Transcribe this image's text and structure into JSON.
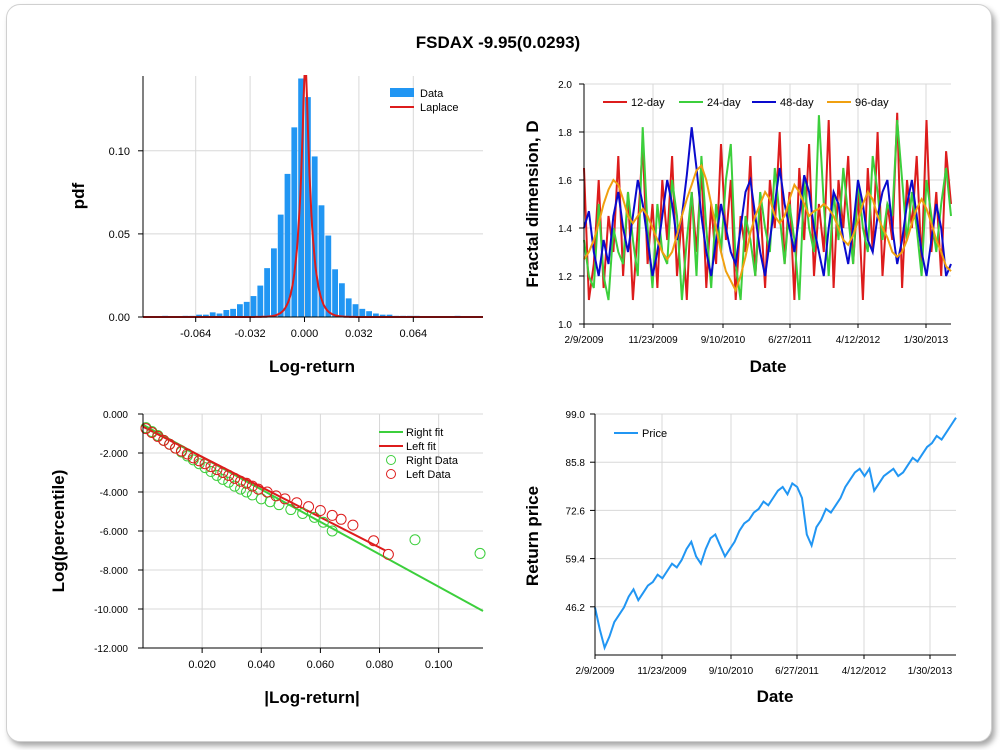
{
  "title": "FSDAX -9.95(0.0293)",
  "colors": {
    "blue": "#2196f3",
    "red": "#dd1c1c",
    "green": "#3ccf3c",
    "navy": "#0a0acd",
    "orange": "#f0a010"
  },
  "chart_data": [
    {
      "type": "bar",
      "name": "histogram",
      "xlabel": "Log-return",
      "ylabel": "pdf",
      "xlim": [
        -0.095,
        0.105
      ],
      "ylim": [
        0,
        0.145
      ],
      "x_ticks": [
        -0.064,
        -0.032,
        0.0,
        0.032,
        0.064
      ],
      "x_tick_labels": [
        "-0.064",
        "-0.032",
        "0.000",
        "0.032",
        "0.064"
      ],
      "y_ticks": [
        0.0,
        0.05,
        0.1
      ],
      "y_tick_labels": [
        "0.00",
        "0.05",
        "0.10"
      ],
      "legend": [
        "Data",
        "Laplace"
      ],
      "legend_position": "top-right",
      "bins": [
        -0.082,
        -0.078,
        -0.074,
        -0.07,
        -0.066,
        -0.062,
        -0.058,
        -0.054,
        -0.05,
        -0.046,
        -0.042,
        -0.038,
        -0.034,
        -0.03,
        -0.026,
        -0.022,
        -0.018,
        -0.014,
        -0.01,
        -0.006,
        -0.002,
        0.002,
        0.006,
        0.01,
        0.014,
        0.018,
        0.022,
        0.026,
        0.03,
        0.034,
        0.038,
        0.042,
        0.046,
        0.05,
        0.054,
        0.058,
        0.062,
        0.066,
        0.07,
        0.074,
        0.078,
        0.082,
        0.086,
        0.09
      ],
      "values": [
        0.0007,
        0,
        0,
        0.0007,
        0.0007,
        0.0014,
        0.0014,
        0.0028,
        0.0021,
        0.0042,
        0.0049,
        0.0077,
        0.0091,
        0.0126,
        0.0189,
        0.0294,
        0.0413,
        0.0616,
        0.0861,
        0.1141,
        0.1435,
        0.1323,
        0.0966,
        0.0672,
        0.049,
        0.0287,
        0.0203,
        0.0112,
        0.0077,
        0.0049,
        0.0035,
        0.0021,
        0.0014,
        0.0014,
        0.0007,
        0.0007,
        0.0007,
        0.0007,
        0,
        0,
        0,
        0,
        0,
        0.0007
      ],
      "laplace": {
        "mu": 0.0005,
        "b": 0.0034
      }
    },
    {
      "type": "line",
      "name": "fractal-dimension",
      "xlabel": "Date",
      "ylabel": "Fractal dimension, D",
      "ylim": [
        1.0,
        2.0
      ],
      "y_ticks": [
        1.0,
        1.2,
        1.4,
        1.6,
        1.8,
        2.0
      ],
      "y_tick_labels": [
        "1.0",
        "1.2",
        "1.4",
        "1.6",
        "1.8",
        "2.0"
      ],
      "x_range": [
        "2/9/2009",
        "5/20/2013"
      ],
      "x_tick_labels": [
        "2/9/2009",
        "11/23/2009",
        "9/10/2010",
        "6/27/2011",
        "4/12/2012",
        "1/30/2013"
      ],
      "legend_position": "top",
      "series": [
        {
          "name": "12-day",
          "color": "#dd1c1c",
          "values": [
            1.65,
            1.1,
            1.25,
            1.6,
            1.15,
            1.45,
            1.3,
            1.7,
            1.2,
            1.55,
            1.1,
            1.4,
            1.75,
            1.25,
            1.5,
            1.15,
            1.6,
            1.35,
            1.7,
            1.2,
            1.45,
            1.1,
            1.55,
            1.3,
            1.65,
            1.15,
            1.5,
            1.25,
            1.75,
            1.35,
            1.6,
            1.1,
            1.45,
            1.3,
            1.7,
            1.2,
            1.5,
            1.15,
            1.6,
            1.4,
            1.8,
            1.25,
            1.55,
            1.1,
            1.65,
            1.35,
            1.75,
            1.2,
            1.5,
            1.3,
            1.85,
            1.15,
            1.6,
            1.4,
            1.7,
            1.25,
            1.55,
            1.1,
            1.65,
            1.3,
            1.8,
            1.2,
            1.5,
            1.35,
            1.88,
            1.15,
            1.6,
            1.4,
            1.7,
            1.25,
            1.85,
            1.3,
            1.55,
            1.2,
            1.72,
            1.5
          ]
        },
        {
          "name": "24-day",
          "color": "#3ccf3c",
          "values": [
            1.35,
            1.2,
            1.15,
            1.5,
            1.2,
            1.1,
            1.4,
            1.3,
            1.25,
            1.55,
            1.35,
            1.2,
            1.82,
            1.4,
            1.15,
            1.5,
            1.3,
            1.25,
            1.6,
            1.45,
            1.1,
            1.35,
            1.55,
            1.2,
            1.7,
            1.4,
            1.15,
            1.5,
            1.3,
            1.6,
            1.75,
            1.25,
            1.1,
            1.45,
            1.35,
            1.2,
            1.55,
            1.4,
            1.3,
            1.65,
            1.45,
            1.25,
            1.5,
            1.35,
            1.1,
            1.6,
            1.4,
            1.3,
            1.87,
            1.5,
            1.2,
            1.55,
            1.35,
            1.65,
            1.45,
            1.25,
            1.6,
            1.4,
            1.3,
            1.7,
            1.55,
            1.35,
            1.5,
            1.45,
            1.85,
            1.6,
            1.35,
            1.55,
            1.4,
            1.2,
            1.6,
            1.45,
            1.3,
            1.5,
            1.65,
            1.45
          ]
        },
        {
          "name": "48-day",
          "color": "#0a0acd",
          "values": [
            1.4,
            1.47,
            1.3,
            1.2,
            1.35,
            1.25,
            1.45,
            1.55,
            1.4,
            1.3,
            1.45,
            1.6,
            1.5,
            1.35,
            1.2,
            1.3,
            1.45,
            1.6,
            1.5,
            1.35,
            1.45,
            1.62,
            1.82,
            1.65,
            1.45,
            1.3,
            1.2,
            1.35,
            1.5,
            1.4,
            1.3,
            1.25,
            1.4,
            1.55,
            1.6,
            1.45,
            1.3,
            1.2,
            1.35,
            1.5,
            1.65,
            1.5,
            1.4,
            1.3,
            1.45,
            1.62,
            1.55,
            1.4,
            1.3,
            1.2,
            1.4,
            1.55,
            1.5,
            1.35,
            1.25,
            1.4,
            1.6,
            1.5,
            1.35,
            1.3,
            1.45,
            1.55,
            1.6,
            1.4,
            1.25,
            1.35,
            1.5,
            1.6,
            1.45,
            1.3,
            1.2,
            1.35,
            1.5,
            1.4,
            1.2,
            1.25
          ]
        },
        {
          "name": "96-day",
          "color": "#f0a010",
          "values": [
            1.27,
            1.3,
            1.35,
            1.42,
            1.5,
            1.56,
            1.6,
            1.58,
            1.52,
            1.45,
            1.42,
            1.45,
            1.48,
            1.45,
            1.4,
            1.35,
            1.3,
            1.27,
            1.3,
            1.37,
            1.45,
            1.52,
            1.58,
            1.64,
            1.66,
            1.6,
            1.5,
            1.4,
            1.3,
            1.22,
            1.18,
            1.14,
            1.2,
            1.28,
            1.38,
            1.45,
            1.5,
            1.55,
            1.52,
            1.45,
            1.42,
            1.45,
            1.52,
            1.58,
            1.55,
            1.5,
            1.45,
            1.47,
            1.48,
            1.5,
            1.48,
            1.45,
            1.4,
            1.35,
            1.33,
            1.37,
            1.43,
            1.5,
            1.55,
            1.52,
            1.45,
            1.4,
            1.36,
            1.3,
            1.28,
            1.3,
            1.35,
            1.42,
            1.48,
            1.52,
            1.48,
            1.42,
            1.35,
            1.3,
            1.24,
            1.22
          ]
        }
      ]
    },
    {
      "type": "scatter",
      "name": "tail-fit",
      "xlabel": "|Log-return|",
      "ylabel": "Log(percentile)",
      "xlim": [
        0,
        0.115
      ],
      "ylim": [
        -12,
        0
      ],
      "x_ticks": [
        0.02,
        0.04,
        0.06,
        0.08,
        0.1
      ],
      "x_tick_labels": [
        "0.020",
        "0.040",
        "0.060",
        "0.080",
        "0.100"
      ],
      "y_ticks": [
        0,
        -2,
        -4,
        -6,
        -8,
        -10,
        -12
      ],
      "y_tick_labels": [
        "0.000",
        "-2.000",
        "-4.000",
        "-6.000",
        "-8.000",
        "-10.000",
        "-12.000"
      ],
      "legend": [
        "Right fit",
        "Left fit",
        "Right Data",
        "Left Data"
      ],
      "legend_position": "top-right",
      "right_fit": {
        "x": [
          0,
          0.115
        ],
        "y": [
          -0.55,
          -10.1
        ],
        "color": "#3ccf3c"
      },
      "left_fit": {
        "x": [
          0,
          0.082
        ],
        "y": [
          -0.65,
          -7.0
        ],
        "color": "#dd1c1c"
      },
      "right_data": {
        "color": "#3ccf3c",
        "x": [
          0.001,
          0.003,
          0.005,
          0.007,
          0.009,
          0.011,
          0.013,
          0.015,
          0.017,
          0.019,
          0.021,
          0.023,
          0.025,
          0.027,
          0.029,
          0.031,
          0.033,
          0.035,
          0.037,
          0.04,
          0.043,
          0.046,
          0.05,
          0.054,
          0.058,
          0.061,
          0.064,
          0.092,
          0.114
        ],
        "y": [
          -0.7,
          -0.9,
          -1.1,
          -1.35,
          -1.55,
          -1.75,
          -1.95,
          -2.15,
          -2.35,
          -2.55,
          -2.75,
          -2.95,
          -3.15,
          -3.35,
          -3.5,
          -3.7,
          -3.85,
          -4.0,
          -4.15,
          -4.35,
          -4.5,
          -4.65,
          -4.9,
          -5.1,
          -5.3,
          -5.55,
          -6.0,
          -6.45,
          -7.15
        ]
      },
      "left_data": {
        "color": "#dd1c1c",
        "x": [
          0.001,
          0.003,
          0.005,
          0.007,
          0.009,
          0.011,
          0.013,
          0.015,
          0.017,
          0.019,
          0.021,
          0.023,
          0.025,
          0.027,
          0.029,
          0.031,
          0.033,
          0.035,
          0.037,
          0.039,
          0.042,
          0.045,
          0.048,
          0.052,
          0.056,
          0.06,
          0.064,
          0.067,
          0.071,
          0.078,
          0.083
        ],
        "y": [
          -0.75,
          -0.95,
          -1.15,
          -1.35,
          -1.55,
          -1.75,
          -1.9,
          -2.05,
          -2.25,
          -2.4,
          -2.55,
          -2.7,
          -2.85,
          -3.0,
          -3.15,
          -3.3,
          -3.45,
          -3.55,
          -3.7,
          -3.85,
          -4.0,
          -4.2,
          -4.35,
          -4.55,
          -4.75,
          -4.95,
          -5.2,
          -5.4,
          -5.7,
          -6.5,
          -7.2
        ]
      }
    },
    {
      "type": "line",
      "name": "price",
      "xlabel": "Date",
      "ylabel": "Return price",
      "ylim": [
        33.0,
        99.0
      ],
      "y_ticks": [
        46.2,
        59.4,
        72.6,
        85.8,
        99.0
      ],
      "y_tick_labels": [
        "46.2",
        "59.4",
        "72.6",
        "85.8",
        "99.0"
      ],
      "x_range": [
        "2/9/2009",
        "5/20/2013"
      ],
      "x_tick_labels": [
        "2/9/2009",
        "11/23/2009",
        "9/10/2010",
        "6/27/2011",
        "4/12/2012",
        "1/30/2013"
      ],
      "legend": [
        "Price"
      ],
      "legend_position": "top-left",
      "series": [
        {
          "name": "Price",
          "color": "#2196f3",
          "values": [
            46,
            40,
            35,
            38,
            42,
            44,
            46,
            49,
            51,
            48,
            50,
            52,
            53,
            55,
            54,
            56,
            58,
            57,
            59,
            62,
            64,
            60,
            58,
            62,
            65,
            66,
            63,
            60,
            62,
            64,
            67,
            69,
            70,
            72,
            73,
            75,
            74,
            76,
            78,
            79,
            77,
            80,
            79,
            76,
            66,
            63,
            68,
            70,
            73,
            72,
            74,
            76,
            79,
            81,
            83,
            84,
            82,
            84,
            78,
            80,
            82,
            83,
            84,
            82,
            83,
            85,
            87,
            86,
            88,
            90,
            91,
            93,
            92,
            94,
            96,
            98
          ]
        }
      ]
    }
  ]
}
